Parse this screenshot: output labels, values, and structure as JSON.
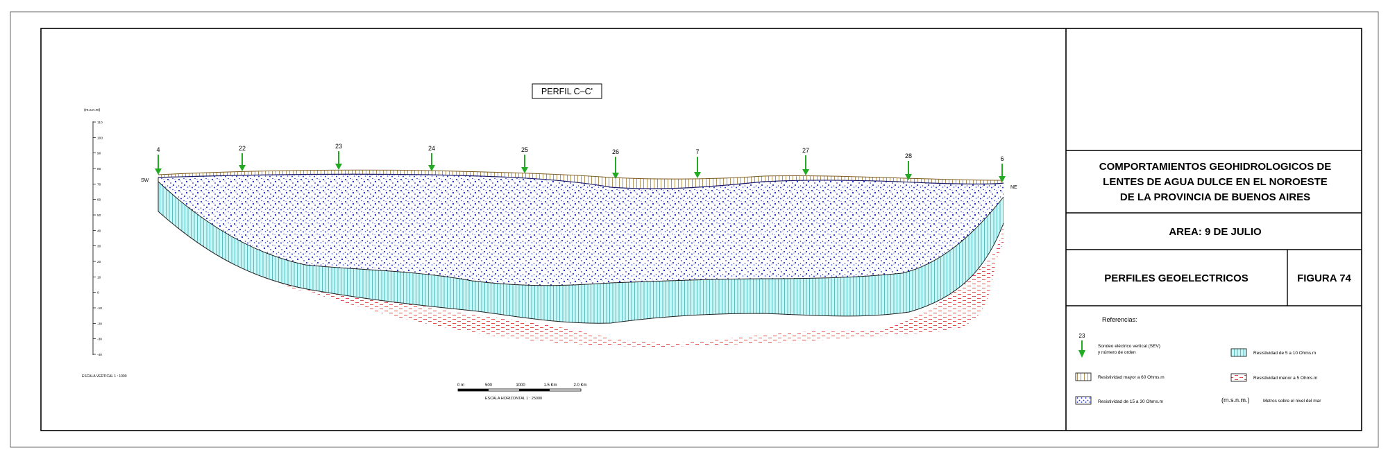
{
  "profile": {
    "label": "PERFIL  C–C'",
    "ends": {
      "left": "SW",
      "right": "NE"
    },
    "sev_ids": [
      "4",
      "22",
      "23",
      "24",
      "25",
      "26",
      "7",
      "27",
      "28",
      "6"
    ]
  },
  "axis": {
    "unit": "(m.s.n.m)",
    "ticks": [
      "110",
      "100",
      "90",
      "80",
      "70",
      "60",
      "50",
      "40",
      "30",
      "20",
      "10",
      "0",
      "-10",
      "-20",
      "-30",
      "-40"
    ],
    "vertical_scale": "ESCALA VERTICAL 1 : 1000"
  },
  "horizontal_scale": {
    "ticks": [
      "0 m",
      "500",
      "1000",
      "1.5 Km",
      "2.0 Km"
    ],
    "label": "ESCALA HORIZONTAL 1 : 25000"
  },
  "title_block": {
    "title_lines": [
      "COMPORTAMIENTOS GEOHIDROLOGICOS DE",
      "LENTES DE AGUA DULCE EN EL NOROESTE",
      "DE LA PROVINCIA DE BUENOS AIRES"
    ],
    "area": "AREA: 9 DE JULIO",
    "section": "PERFILES GEOELECTRICOS",
    "figure": "FIGURA 74"
  },
  "legend": {
    "heading": "Referencias:",
    "sev_sample": "23",
    "sev_lines": [
      "Sondeo eléctrico vertical (SEV)",
      "y número de orden"
    ],
    "res_high": "Resistividad mayor a 60 Ohms.m",
    "res_15_30": "Resistividad de 15 a 30 Ohms.m",
    "res_5_10": "Resistividad de 5 a 10 Ohms.m",
    "res_low": "Resistividad menor a 5 Ohms.m",
    "msnm_symbol": "(m.s.n.m.)",
    "msnm_text": "Metros sobre el nivel del mar"
  },
  "colors": {
    "sev_arrow": "#22aa22",
    "high_res": "#a07a30",
    "dots": "#1f2fd6",
    "cyan_fill": "#c7f6f7",
    "cyan_lines": "#2a9fa6",
    "red_dash": "#e05050"
  }
}
